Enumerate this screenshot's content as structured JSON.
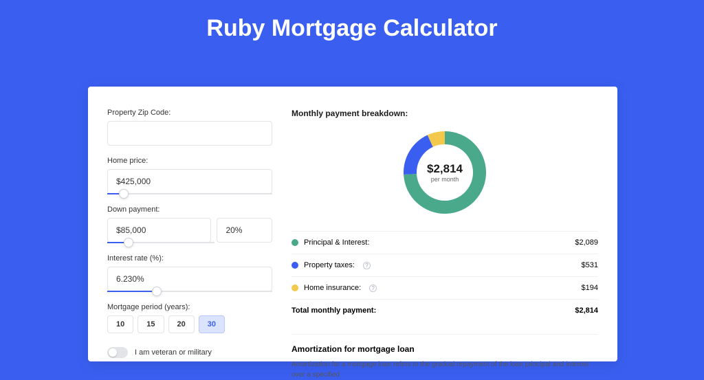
{
  "page": {
    "title": "Ruby Mortgage Calculator",
    "background_color": "#3a5ff0",
    "card_background": "#ffffff"
  },
  "form": {
    "zip": {
      "label": "Property Zip Code:",
      "value": ""
    },
    "home_price": {
      "label": "Home price:",
      "value": "$425,000",
      "slider_pct": 10
    },
    "down_payment": {
      "label": "Down payment:",
      "value": "$85,000",
      "pct_value": "20%",
      "slider_pct": 20
    },
    "interest_rate": {
      "label": "Interest rate (%):",
      "value": "6.230%",
      "slider_pct": 30
    },
    "period": {
      "label": "Mortgage period (years):",
      "options": [
        "10",
        "15",
        "20",
        "30"
      ],
      "selected": "30"
    },
    "veteran": {
      "label": "I am veteran or military",
      "checked": false
    }
  },
  "breakdown": {
    "title": "Monthly payment breakdown:",
    "donut": {
      "amount": "$2,814",
      "sub": "per month",
      "slices": [
        {
          "label": "Principal & Interest",
          "value": 2089,
          "pct": 74.2,
          "color": "#4aa98a"
        },
        {
          "label": "Property taxes",
          "value": 531,
          "pct": 18.9,
          "color": "#3a5ff0"
        },
        {
          "label": "Home insurance",
          "value": 194,
          "pct": 6.9,
          "color": "#f2c94c"
        }
      ],
      "thickness": 20,
      "background": "#ffffff"
    },
    "rows": [
      {
        "label": "Principal & Interest:",
        "value": "$2,089",
        "color": "#4aa98a",
        "info": false
      },
      {
        "label": "Property taxes:",
        "value": "$531",
        "color": "#3a5ff0",
        "info": true
      },
      {
        "label": "Home insurance:",
        "value": "$194",
        "color": "#f2c94c",
        "info": true
      }
    ],
    "total": {
      "label": "Total monthly payment:",
      "value": "$2,814"
    }
  },
  "amortization": {
    "title": "Amortization for mortgage loan",
    "text": "Amortization for a mortgage loan refers to the gradual repayment of the loan principal and interest over a specified"
  }
}
